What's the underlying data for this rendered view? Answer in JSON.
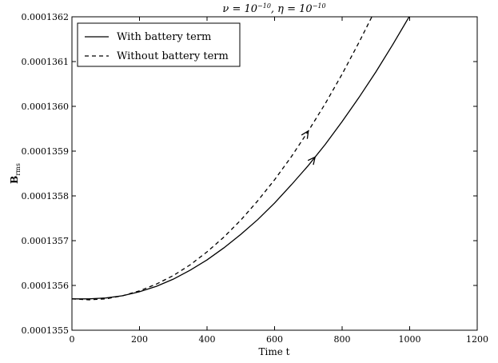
{
  "chart_data": {
    "type": "line",
    "title": "ν = 10^−10, η = 10^−10",
    "title_parts": {
      "nu_sym": "ν = 10",
      "nu_exp": "−10",
      "eta_sym": ", η = 10",
      "eta_exp": "−10"
    },
    "xlabel": "Time t",
    "ylabel": "B_rms",
    "ylabel_parts": {
      "main": "B",
      "sub": "rms"
    },
    "xlim": [
      0,
      1200
    ],
    "ylim": [
      0.0001355,
      0.0001362
    ],
    "xticks": [
      0,
      200,
      400,
      600,
      800,
      1000,
      1200
    ],
    "xtick_labels": [
      "0",
      "200",
      "400",
      "600",
      "800",
      "1000",
      "1200"
    ],
    "yticks": [
      0.0001355,
      0.0001356,
      0.0001357,
      0.0001358,
      0.0001359,
      0.000136,
      0.0001361,
      0.0001362
    ],
    "ytick_labels": [
      "0.0001355",
      "0.0001356",
      "0.0001357",
      "0.0001358",
      "0.0001359",
      "0.0001360",
      "0.0001361",
      "0.0001362"
    ],
    "grid": false,
    "legend_position": "top-left",
    "series": [
      {
        "name": "With battery term",
        "style": "solid",
        "color": "#000000",
        "x": [
          0,
          50,
          100,
          150,
          200,
          250,
          300,
          350,
          400,
          450,
          500,
          550,
          600,
          650,
          700,
          750,
          800,
          850,
          900,
          950,
          1000,
          1020
        ],
        "y": [
          0.00013557,
          0.00013557,
          0.000135572,
          0.000135577,
          0.000135586,
          0.000135598,
          0.000135614,
          0.000135634,
          0.000135657,
          0.000135684,
          0.000135714,
          0.000135747,
          0.000135784,
          0.000135825,
          0.000135868,
          0.000135915,
          0.000135966,
          0.00013602,
          0.000136077,
          0.000136138,
          0.000136202,
          0.000136228
        ],
        "arrow_at_x": 720
      },
      {
        "name": "Without battery term",
        "style": "dashed",
        "color": "#000000",
        "x": [
          0,
          50,
          100,
          150,
          200,
          250,
          300,
          350,
          400,
          450,
          500,
          550,
          600,
          650,
          700,
          750,
          800,
          850,
          900,
          950
        ],
        "y": [
          0.00013557,
          0.000135568,
          0.00013557,
          0.000135577,
          0.000135588,
          0.000135603,
          0.000135622,
          0.000135646,
          0.000135675,
          0.000135708,
          0.000135746,
          0.000135789,
          0.000135836,
          0.000135888,
          0.000135945,
          0.000136006,
          0.000136072,
          0.000136143,
          0.000136218,
          0.0001362
        ],
        "arrow_at_x": 700
      }
    ]
  }
}
